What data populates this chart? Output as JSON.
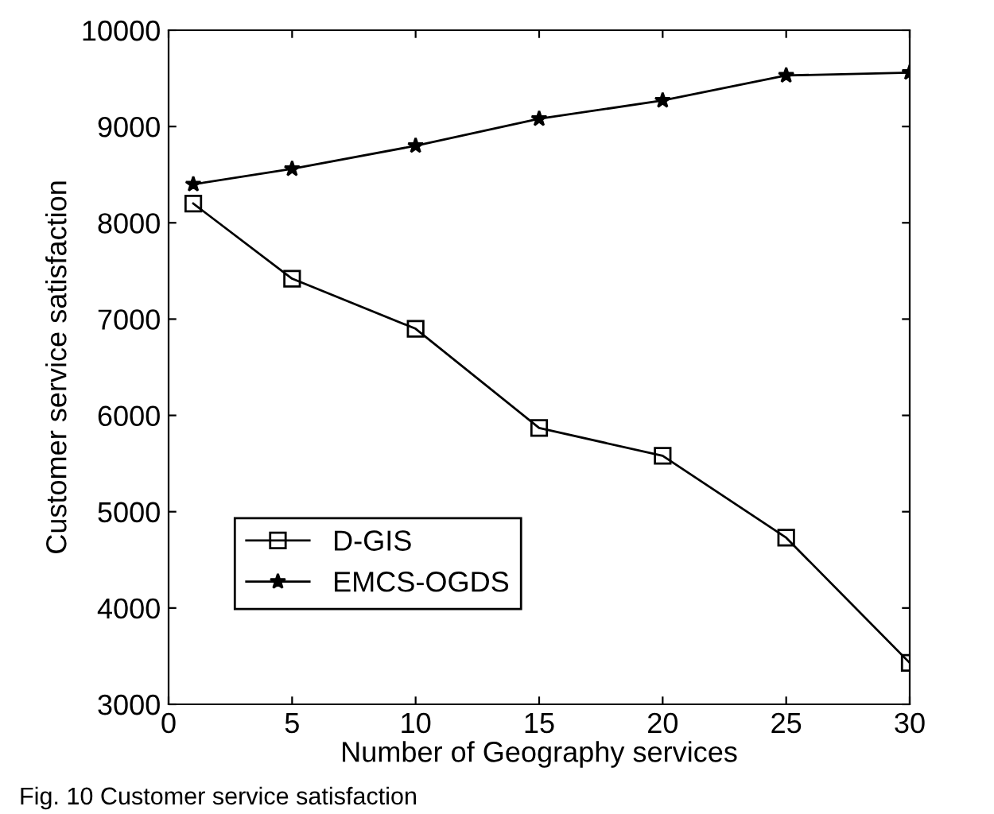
{
  "chart_data": {
    "type": "line",
    "xlabel": "Number of Geography services",
    "ylabel": "Customer service satisfaction",
    "x": [
      1,
      5,
      10,
      15,
      20,
      25,
      30
    ],
    "series": [
      {
        "name": "D-GIS",
        "color": "#000000",
        "marker": "square",
        "values": [
          8200,
          7420,
          6900,
          5870,
          5580,
          4730,
          3430
        ]
      },
      {
        "name": "EMCS-OGDS",
        "color": "#000000",
        "marker": "star",
        "values": [
          8400,
          8560,
          8800,
          9080,
          9270,
          9530,
          9560
        ]
      }
    ],
    "xlim": [
      0,
      30
    ],
    "xticks": [
      0,
      5,
      10,
      15,
      20,
      25,
      30
    ],
    "ylim": [
      3000,
      10000
    ],
    "yticks": [
      3000,
      4000,
      5000,
      6000,
      7000,
      8000,
      9000,
      10000
    ],
    "legend": "bottom left",
    "line_style": "solid",
    "annotations": [
      "Fig. 10 Customer service satisfaction"
    ]
  }
}
